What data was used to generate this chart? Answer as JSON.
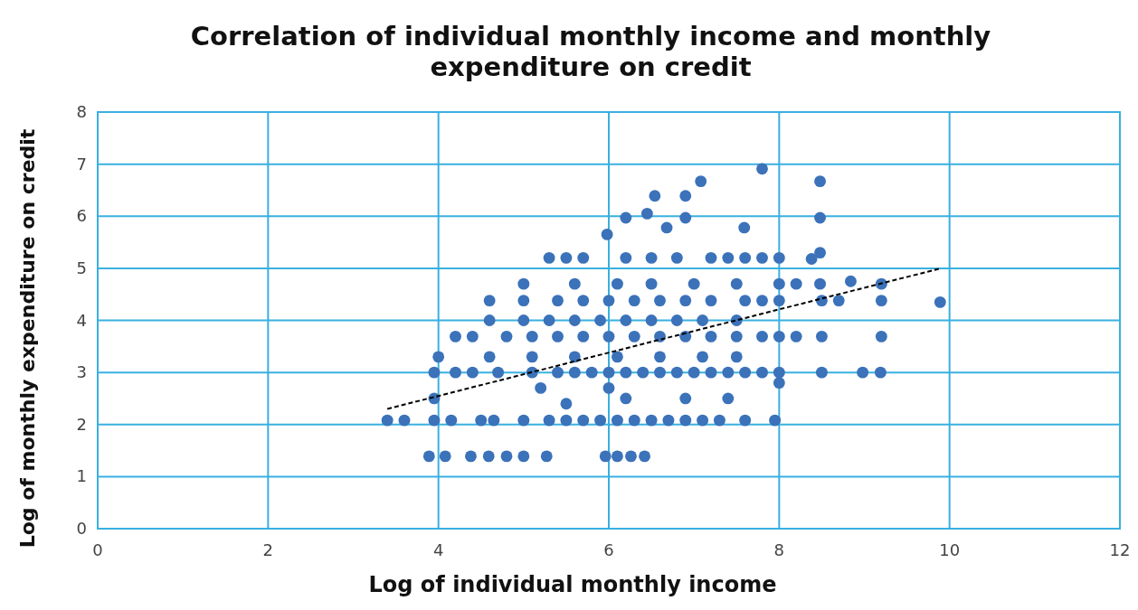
{
  "chart_data": {
    "type": "scatter",
    "title": "Correlation of individual monthly income and monthly expenditure on credit",
    "xlabel": "Log of individual monthly income",
    "ylabel": "Log of monthly expenditure on credit",
    "xlim": [
      0,
      12
    ],
    "xticks": [
      0,
      2,
      4,
      6,
      8,
      10,
      12
    ],
    "ylim": [
      0,
      8
    ],
    "yticks": [
      0,
      1,
      2,
      3,
      4,
      5,
      6,
      7,
      8
    ],
    "grid": true,
    "series": [
      {
        "color": "#3b72b9",
        "marker": "circle",
        "x": [
          3.89,
          4.08,
          4.38,
          4.59,
          4.8,
          5.0,
          5.27,
          5.96,
          6.1,
          6.26,
          6.42,
          3.4,
          3.6,
          3.95,
          4.15,
          4.5,
          4.65,
          5.0,
          5.3,
          5.5,
          5.7,
          5.9,
          6.1,
          6.3,
          6.5,
          6.7,
          6.9,
          7.1,
          7.3,
          7.6,
          7.95,
          5.5,
          6.2,
          6.9,
          7.4,
          5.2,
          6.0,
          8.0,
          3.95,
          3.95,
          4.2,
          4.4,
          4.7,
          5.1,
          5.4,
          5.6,
          5.8,
          6.0,
          6.2,
          6.4,
          6.6,
          6.8,
          7.0,
          7.2,
          7.4,
          7.6,
          7.8,
          8.0,
          8.5,
          8.98,
          9.19,
          4.0,
          4.6,
          5.1,
          5.6,
          6.1,
          6.6,
          7.1,
          7.5,
          4.2,
          4.4,
          4.8,
          5.1,
          5.4,
          5.7,
          6.0,
          6.3,
          6.6,
          6.9,
          7.2,
          7.5,
          7.8,
          8.0,
          8.2,
          8.5,
          9.2,
          4.6,
          5.0,
          5.3,
          5.6,
          5.9,
          6.2,
          6.5,
          6.8,
          7.1,
          7.5,
          4.6,
          5.0,
          5.4,
          5.7,
          6.0,
          6.3,
          6.6,
          6.9,
          7.2,
          7.6,
          7.8,
          8.0,
          8.5,
          8.7,
          9.2,
          9.89,
          5.0,
          5.6,
          6.1,
          6.5,
          7.0,
          7.5,
          8.0,
          8.2,
          8.48,
          8.84,
          9.2,
          5.3,
          5.5,
          5.7,
          6.2,
          6.5,
          6.8,
          7.2,
          7.4,
          7.6,
          7.8,
          8.0,
          8.38,
          8.48,
          6.2,
          6.45,
          6.54,
          6.9,
          6.9,
          7.08,
          7.8,
          5.98,
          6.68,
          7.59,
          8.48,
          8.48
        ],
        "values": [
          1.39,
          1.39,
          1.39,
          1.39,
          1.39,
          1.39,
          1.39,
          1.39,
          1.39,
          1.39,
          1.39,
          2.08,
          2.08,
          2.08,
          2.08,
          2.08,
          2.08,
          2.08,
          2.08,
          2.08,
          2.08,
          2.08,
          2.08,
          2.08,
          2.08,
          2.08,
          2.08,
          2.08,
          2.08,
          2.08,
          2.08,
          2.4,
          2.5,
          2.5,
          2.5,
          2.7,
          2.7,
          2.8,
          2.5,
          3.0,
          3.0,
          3.0,
          3.0,
          3.0,
          3.0,
          3.0,
          3.0,
          3.0,
          3.0,
          3.0,
          3.0,
          3.0,
          3.0,
          3.0,
          3.0,
          3.0,
          3.0,
          3.0,
          3.0,
          3.0,
          3.0,
          3.3,
          3.3,
          3.3,
          3.3,
          3.3,
          3.3,
          3.3,
          3.3,
          3.69,
          3.69,
          3.69,
          3.69,
          3.69,
          3.69,
          3.69,
          3.69,
          3.69,
          3.69,
          3.69,
          3.69,
          3.69,
          3.69,
          3.69,
          3.69,
          3.69,
          4.0,
          4.0,
          4.0,
          4.0,
          4.0,
          4.0,
          4.0,
          4.0,
          4.0,
          4.0,
          4.38,
          4.38,
          4.38,
          4.38,
          4.38,
          4.38,
          4.38,
          4.38,
          4.38,
          4.38,
          4.38,
          4.38,
          4.38,
          4.38,
          4.38,
          4.35,
          4.7,
          4.7,
          4.7,
          4.7,
          4.7,
          4.7,
          4.7,
          4.7,
          4.7,
          4.75,
          4.7,
          5.2,
          5.2,
          5.2,
          5.2,
          5.2,
          5.2,
          5.2,
          5.2,
          5.2,
          5.2,
          5.2,
          5.18,
          5.3,
          5.97,
          6.05,
          6.39,
          6.39,
          5.97,
          6.67,
          6.91,
          5.65,
          5.78,
          5.78,
          5.97,
          6.67
        ]
      },
      {
        "type": "line",
        "color": "#000000",
        "line_style": "dashed",
        "marker": "none",
        "x": [
          3.4,
          9.9
        ],
        "values": [
          2.3,
          5.0
        ]
      }
    ]
  }
}
